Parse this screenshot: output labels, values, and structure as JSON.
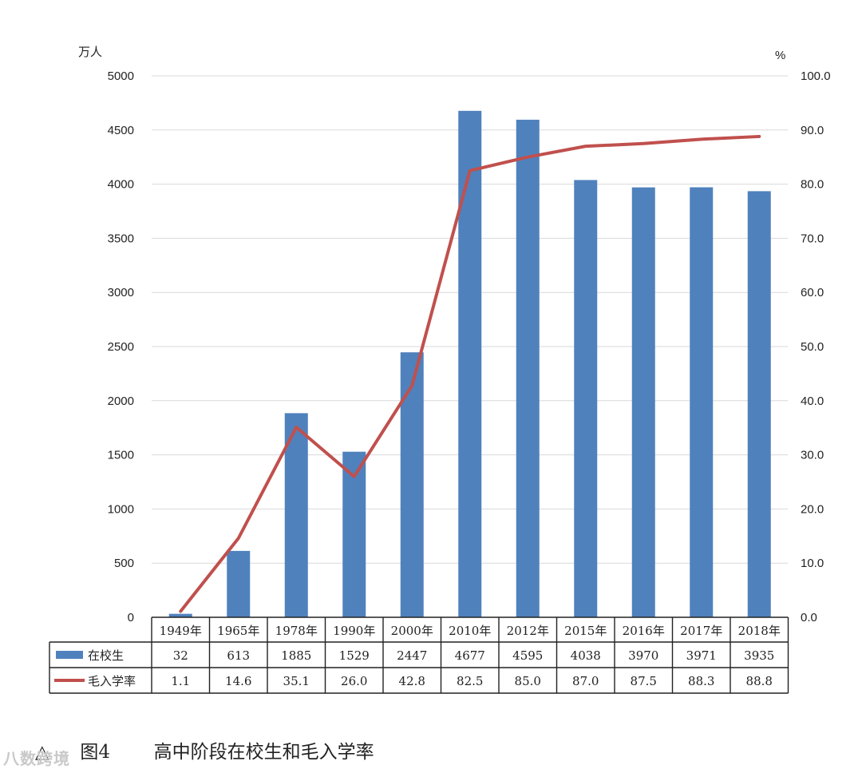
{
  "chart_data": {
    "type": "bar",
    "categories": [
      "1949年",
      "1965年",
      "1978年",
      "1990年",
      "2000年",
      "2010年",
      "2012年",
      "2015年",
      "2016年",
      "2017年",
      "2018年"
    ],
    "left_axis": {
      "unit": "万人",
      "ylim": [
        0,
        5000
      ],
      "ticks": [
        "5000",
        "4500",
        "4000",
        "3500",
        "3000",
        "2500",
        "2000",
        "1500",
        "1000",
        "500",
        "0"
      ]
    },
    "right_axis": {
      "unit": "%",
      "ylim": [
        0,
        100
      ],
      "ticks": [
        "100.0",
        "90.0",
        "80.0",
        "70.0",
        "60.0",
        "50.0",
        "40.0",
        "30.0",
        "20.0",
        "10.0",
        "0.0"
      ]
    },
    "series": [
      {
        "name": "在校生",
        "kind": "bar",
        "axis": "left",
        "color": "#4f81bd",
        "values": [
          32,
          613,
          1885,
          1529,
          2447,
          4677,
          4595,
          4038,
          3970,
          3971,
          3935
        ],
        "labels": [
          "32",
          "613",
          "1885",
          "1529",
          "2447",
          "4677",
          "4595",
          "4038",
          "3970",
          "3971",
          "3935"
        ]
      },
      {
        "name": "毛入学率",
        "kind": "line",
        "axis": "right",
        "color": "#c0504d",
        "values": [
          1.1,
          14.6,
          35.1,
          26.0,
          42.8,
          82.5,
          85.0,
          87.0,
          87.5,
          88.3,
          88.8
        ],
        "labels": [
          "1.1",
          "14.6",
          "35.1",
          "26.0",
          "42.8",
          "82.5",
          "85.0",
          "87.0",
          "87.5",
          "88.3",
          "88.8"
        ]
      }
    ],
    "grid": true,
    "data_table": true
  },
  "caption": {
    "symbol": "△",
    "figure": "图4",
    "title": "高中阶段在校生和毛入学率"
  },
  "watermark": "八数跨境"
}
